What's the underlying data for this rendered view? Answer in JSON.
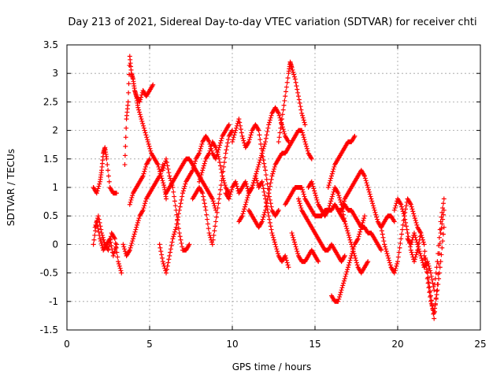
{
  "chart_data": {
    "type": "scatter",
    "title": "Day 213 of 2021, Sidereal Day-to-day VTEC variation (SDTVAR) for receiver chti",
    "xlabel": "GPS time / hours",
    "ylabel": "SDTVAR / TECUs",
    "xlim": [
      0,
      25
    ],
    "ylim": [
      -1.5,
      3.5
    ],
    "xticks": [
      0,
      5,
      10,
      15,
      20,
      25
    ],
    "yticks": [
      -1.5,
      -1,
      -0.5,
      0,
      0.5,
      1,
      1.5,
      2,
      2.5,
      3,
      3.5
    ],
    "xtick_labels": [
      "0",
      "5",
      "10",
      "15",
      "20",
      "25"
    ],
    "ytick_labels": [
      "-1.5",
      "-1",
      "-0.5",
      "0",
      "0.5",
      "1",
      "1.5",
      "2",
      "2.5",
      "3",
      "3.5"
    ],
    "grid": true,
    "marker": "+",
    "color": "#ff0000",
    "series": [
      {
        "x": [
          1.6,
          1.8,
          2.0,
          2.2,
          2.4,
          2.6,
          2.8,
          3.0
        ],
        "y": [
          0.0,
          0.4,
          0.1,
          -0.1,
          0.0,
          0.1,
          -0.2,
          0.0
        ]
      },
      {
        "x": [
          1.6,
          1.8,
          2.0,
          2.1,
          2.2,
          2.3,
          2.4,
          2.6,
          2.8,
          3.0
        ],
        "y": [
          1.0,
          0.9,
          1.1,
          1.3,
          1.6,
          1.7,
          1.5,
          1.0,
          0.9,
          0.9
        ]
      },
      {
        "x": [
          1.7,
          1.9,
          2.1,
          2.3,
          2.5,
          2.7,
          2.9,
          3.1,
          3.3
        ],
        "y": [
          0.3,
          0.5,
          0.2,
          0.0,
          -0.1,
          0.2,
          0.1,
          -0.3,
          -0.5
        ]
      },
      {
        "x": [
          3.5,
          3.6,
          3.7,
          3.8,
          3.9,
          4.0,
          4.1,
          4.2,
          4.3,
          4.5,
          4.7,
          4.9,
          5.1,
          5.3,
          5.5,
          5.7,
          5.9,
          6.0
        ],
        "y": [
          1.4,
          2.2,
          2.5,
          3.3,
          3.0,
          2.9,
          2.7,
          2.6,
          2.4,
          2.2,
          2.0,
          1.8,
          1.6,
          1.5,
          1.4,
          1.2,
          1.0,
          0.8
        ]
      },
      {
        "x": [
          4.2,
          4.4,
          4.6,
          4.8,
          5.0,
          5.2
        ],
        "y": [
          2.6,
          2.5,
          2.7,
          2.6,
          2.7,
          2.8
        ]
      },
      {
        "x": [
          3.4,
          3.6,
          3.8,
          4.0,
          4.2,
          4.4,
          4.6,
          4.8,
          5.0,
          5.2,
          5.4,
          5.6,
          5.8
        ],
        "y": [
          0.0,
          -0.2,
          -0.1,
          0.1,
          0.3,
          0.5,
          0.6,
          0.8,
          0.9,
          1.0,
          1.1,
          1.2,
          1.4
        ]
      },
      {
        "x": [
          3.8,
          4.0,
          4.2,
          4.4,
          4.6,
          4.8,
          5.0
        ],
        "y": [
          0.7,
          0.9,
          1.0,
          1.1,
          1.2,
          1.4,
          1.5
        ]
      },
      {
        "x": [
          5.6,
          5.8,
          6.0,
          6.2,
          6.4,
          6.6,
          6.8,
          7.0,
          7.2,
          7.4,
          7.6,
          7.8,
          8.0,
          8.2,
          8.4,
          8.6,
          8.8,
          9.0,
          9.2,
          9.4,
          9.6,
          9.8
        ],
        "y": [
          0.0,
          -0.3,
          -0.5,
          -0.2,
          0.1,
          0.3,
          0.6,
          0.9,
          1.1,
          1.2,
          1.3,
          1.5,
          1.6,
          1.8,
          1.9,
          1.8,
          1.6,
          1.5,
          1.7,
          1.9,
          2.0,
          2.1
        ]
      },
      {
        "x": [
          5.8,
          6.0,
          6.2,
          6.4,
          6.6,
          6.8,
          7.0,
          7.2,
          7.4
        ],
        "y": [
          1.3,
          1.5,
          1.2,
          1.0,
          0.6,
          0.2,
          -0.1,
          -0.1,
          0.0
        ]
      },
      {
        "x": [
          6.0,
          6.2,
          6.4,
          6.6,
          6.8,
          7.0,
          7.2,
          7.4,
          7.6,
          7.8,
          8.0,
          8.2,
          8.4,
          8.6,
          8.8,
          9.0
        ],
        "y": [
          0.9,
          1.0,
          1.1,
          1.2,
          1.3,
          1.4,
          1.5,
          1.5,
          1.4,
          1.3,
          1.2,
          1.1,
          1.0,
          0.9,
          0.8,
          0.6
        ]
      },
      {
        "x": [
          7.6,
          7.8,
          8.0,
          8.2,
          8.4,
          8.6,
          8.8,
          9.0,
          9.2,
          9.4,
          9.6,
          9.8,
          10.0
        ],
        "y": [
          0.8,
          0.9,
          1.0,
          0.9,
          0.6,
          0.2,
          0.0,
          0.4,
          0.8,
          1.2,
          1.6,
          1.9,
          2.0
        ]
      },
      {
        "x": [
          8.0,
          8.2,
          8.4,
          8.6,
          8.8,
          9.0,
          9.2,
          9.4,
          9.6,
          9.8
        ],
        "y": [
          1.1,
          1.3,
          1.5,
          1.6,
          1.8,
          1.7,
          1.5,
          1.2,
          1.0,
          0.9
        ]
      },
      {
        "x": [
          9.6,
          9.8,
          10.0,
          10.2,
          10.4,
          10.6,
          10.8,
          11.0,
          11.2,
          11.4,
          11.6,
          11.8,
          12.0,
          12.2,
          12.4,
          12.6,
          12.8,
          13.0,
          13.2,
          13.4
        ],
        "y": [
          0.9,
          0.8,
          1.0,
          1.1,
          0.9,
          1.0,
          1.1,
          0.9,
          1.0,
          1.2,
          1.0,
          1.1,
          0.8,
          0.5,
          0.2,
          0.0,
          -0.2,
          -0.3,
          -0.2,
          -0.4
        ]
      },
      {
        "x": [
          10.0,
          10.2,
          10.4,
          10.6,
          10.8,
          11.0,
          11.2,
          11.4,
          11.6,
          11.8,
          12.0,
          12.2,
          12.4,
          12.6,
          12.8
        ],
        "y": [
          1.8,
          2.0,
          2.2,
          1.9,
          1.7,
          1.8,
          2.0,
          2.1,
          2.0,
          1.6,
          1.3,
          0.9,
          0.6,
          0.5,
          0.6
        ]
      },
      {
        "x": [
          10.4,
          10.6,
          10.8,
          11.0,
          11.2,
          11.4,
          11.6,
          11.8,
          12.0,
          12.2,
          12.4,
          12.6,
          12.8,
          13.0,
          13.2,
          13.4
        ],
        "y": [
          0.4,
          0.5,
          0.7,
          0.9,
          1.0,
          1.2,
          1.4,
          1.6,
          1.8,
          2.1,
          2.3,
          2.4,
          2.3,
          2.1,
          1.9,
          1.8
        ]
      },
      {
        "x": [
          11.0,
          11.2,
          11.4,
          11.6,
          11.8,
          12.0,
          12.2,
          12.4,
          12.6,
          12.8,
          13.0,
          13.2,
          13.4,
          13.6,
          13.8,
          14.0,
          14.2,
          14.4,
          14.6,
          14.8
        ],
        "y": [
          0.6,
          0.5,
          0.4,
          0.3,
          0.4,
          0.6,
          0.9,
          1.2,
          1.4,
          1.5,
          1.6,
          1.6,
          1.7,
          1.8,
          1.9,
          2.0,
          2.0,
          1.8,
          1.6,
          1.5
        ]
      },
      {
        "x": [
          12.8,
          13.0,
          13.2,
          13.4,
          13.5,
          13.6,
          13.8,
          14.0,
          14.2,
          14.4
        ],
        "y": [
          1.8,
          2.2,
          2.6,
          3.0,
          3.2,
          3.1,
          2.9,
          2.6,
          2.3,
          2.1
        ]
      },
      {
        "x": [
          13.2,
          13.4,
          13.6,
          13.8,
          14.0,
          14.2,
          14.4,
          14.6,
          14.8,
          15.0,
          15.2,
          15.4,
          15.6,
          15.8,
          16.0,
          16.2,
          16.4,
          16.6,
          16.8
        ],
        "y": [
          0.7,
          0.8,
          0.9,
          1.0,
          1.0,
          1.0,
          0.8,
          0.7,
          0.6,
          0.5,
          0.5,
          0.5,
          0.6,
          0.6,
          0.6,
          0.7,
          0.6,
          0.5,
          0.4
        ]
      },
      {
        "x": [
          13.6,
          13.8,
          14.0,
          14.2,
          14.4,
          14.6,
          14.8,
          15.0,
          15.2
        ],
        "y": [
          0.2,
          0.0,
          -0.2,
          -0.3,
          -0.3,
          -0.2,
          -0.1,
          -0.2,
          -0.3
        ]
      },
      {
        "x": [
          14.0,
          14.2,
          14.4,
          14.6,
          14.8,
          15.0,
          15.2,
          15.4,
          15.6,
          15.8,
          16.0,
          16.2,
          16.4,
          16.6,
          16.8
        ],
        "y": [
          0.8,
          0.6,
          0.5,
          0.4,
          0.3,
          0.2,
          0.1,
          0.0,
          -0.1,
          -0.1,
          0.0,
          -0.1,
          -0.2,
          -0.3,
          -0.2
        ]
      },
      {
        "x": [
          14.6,
          14.8,
          15.0,
          15.2,
          15.4,
          15.6,
          15.8,
          16.0,
          16.2,
          16.4,
          16.6,
          16.8,
          17.0,
          17.2,
          17.4,
          17.6,
          17.8,
          18.0,
          18.2
        ],
        "y": [
          1.0,
          1.1,
          0.9,
          0.7,
          0.6,
          0.5,
          0.6,
          0.8,
          1.0,
          0.9,
          0.7,
          0.4,
          0.2,
          0.0,
          -0.2,
          -0.4,
          -0.5,
          -0.4,
          -0.3
        ]
      },
      {
        "x": [
          15.8,
          16.0,
          16.2,
          16.4,
          16.6,
          16.8,
          17.0,
          17.2,
          17.4
        ],
        "y": [
          1.0,
          1.2,
          1.4,
          1.5,
          1.6,
          1.7,
          1.8,
          1.8,
          1.9
        ]
      },
      {
        "x": [
          16.0,
          16.2,
          16.4,
          16.6,
          16.8,
          17.0,
          17.2,
          17.4,
          17.6,
          17.8,
          18.0
        ],
        "y": [
          -0.9,
          -1.0,
          -1.0,
          -0.8,
          -0.6,
          -0.4,
          -0.2,
          0.0,
          0.1,
          0.3,
          0.5
        ]
      },
      {
        "x": [
          16.6,
          16.8,
          17.0,
          17.2,
          17.4,
          17.6,
          17.8,
          18.0,
          18.2,
          18.4,
          18.6,
          18.8,
          19.0,
          19.2,
          19.4,
          19.6,
          19.8
        ],
        "y": [
          0.6,
          0.8,
          0.9,
          1.0,
          1.1,
          1.2,
          1.3,
          1.2,
          1.0,
          0.8,
          0.6,
          0.4,
          0.3,
          0.4,
          0.5,
          0.5,
          0.4
        ]
      },
      {
        "x": [
          16.4,
          16.6,
          16.8,
          17.0,
          17.2,
          17.4,
          17.6,
          17.8,
          18.0,
          18.2,
          18.4,
          18.6,
          18.8,
          19.0
        ],
        "y": [
          0.6,
          0.6,
          0.7,
          0.6,
          0.6,
          0.5,
          0.4,
          0.3,
          0.3,
          0.2,
          0.2,
          0.1,
          0.0,
          -0.1
        ]
      },
      {
        "x": [
          19.0,
          19.2,
          19.4,
          19.6,
          19.8,
          20.0,
          20.2,
          20.4,
          20.6,
          20.8,
          21.0,
          21.2,
          21.4
        ],
        "y": [
          0.3,
          0.0,
          -0.2,
          -0.4,
          -0.5,
          -0.3,
          0.1,
          0.5,
          0.8,
          0.7,
          0.5,
          0.3,
          0.2
        ]
      },
      {
        "x": [
          19.8,
          20.0,
          20.2,
          20.4,
          20.6,
          20.8,
          21.0,
          21.2,
          21.4,
          21.6,
          21.8,
          22.0,
          22.2,
          22.4,
          22.6,
          22.8
        ],
        "y": [
          0.6,
          0.8,
          0.7,
          0.5,
          0.2,
          -0.1,
          -0.3,
          -0.1,
          0.2,
          0.0,
          -0.6,
          -1.0,
          -1.2,
          -0.8,
          -0.3,
          0.3
        ]
      },
      {
        "x": [
          20.6,
          20.8,
          21.0,
          21.2,
          21.4,
          21.6,
          21.8,
          22.0,
          22.2,
          22.4,
          22.6,
          22.8
        ],
        "y": [
          0.1,
          0.0,
          0.2,
          0.0,
          -0.2,
          -0.4,
          -0.3,
          -0.5,
          -0.8,
          -0.3,
          0.4,
          0.8
        ]
      },
      {
        "x": [
          21.6,
          21.8,
          22.0,
          22.2,
          22.4,
          22.6,
          22.8
        ],
        "y": [
          -0.2,
          -0.5,
          -0.9,
          -1.3,
          -0.7,
          0.2,
          0.6
        ]
      }
    ]
  }
}
